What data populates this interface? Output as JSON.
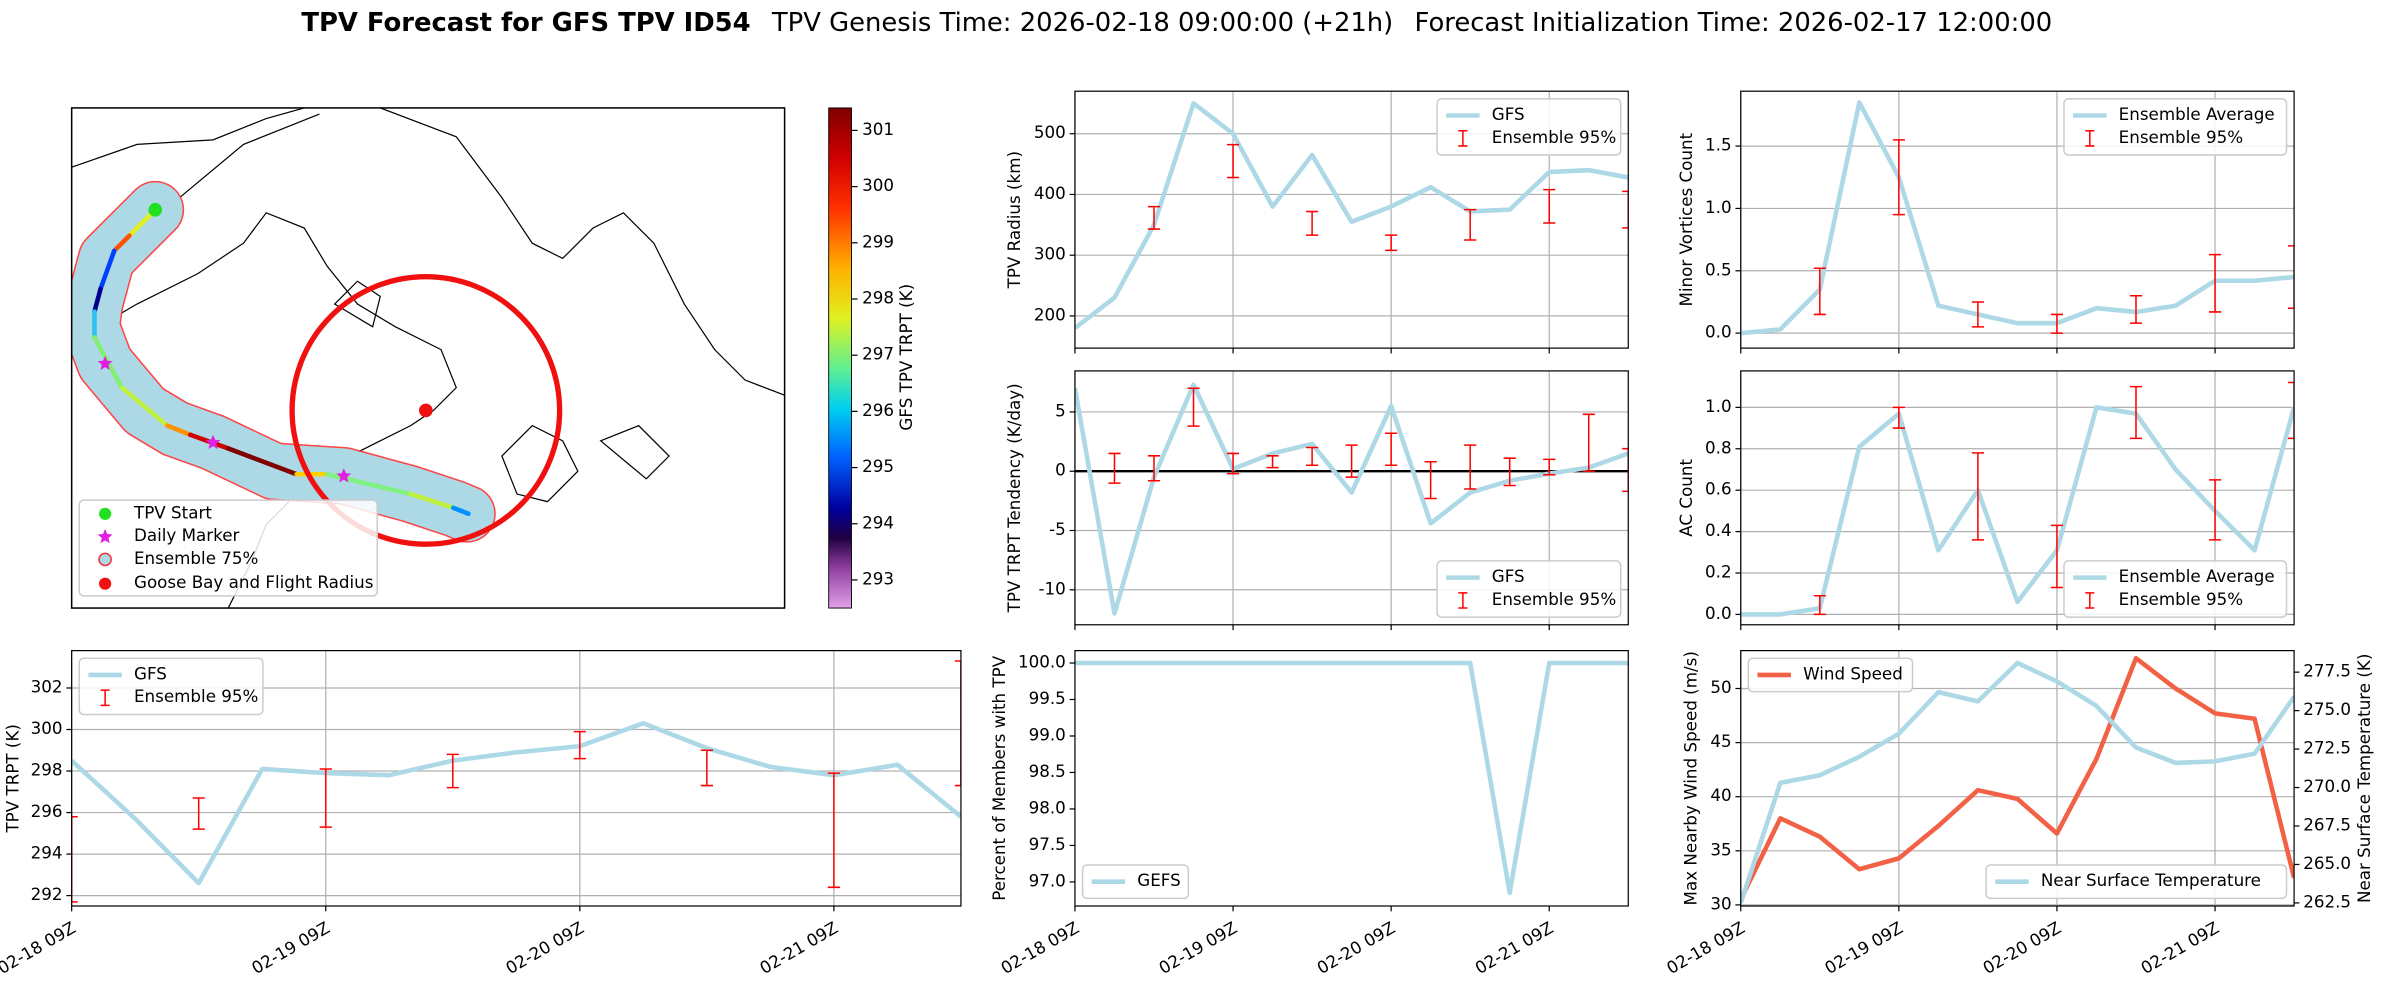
{
  "figure": {
    "title": "TPV Forecast for GFS TPV ID54",
    "genesis": "TPV Genesis Time: 2026-02-18 09:00:00 (+21h)",
    "init": "Forecast Initialization Time: 2026-02-17 12:00:00"
  },
  "chart_data": [
    {
      "type": "map",
      "legend": [
        "TPV Start",
        "Daily Marker",
        "Ensemble 75%",
        "Goose Bay and Flight Radius"
      ],
      "colorbar": {
        "label": "GFS TPV TRPT (K)",
        "lim": [
          292.5,
          301.4
        ],
        "ticks": [
          293,
          294,
          295,
          296,
          297,
          298,
          299,
          300,
          301
        ]
      }
    },
    {
      "type": "line",
      "ylabel": "TPV TRPT (K)",
      "grid": true,
      "legend": "upper left",
      "x": [
        0,
        6,
        12,
        18,
        24,
        30,
        36,
        42,
        48,
        54,
        60,
        66,
        72,
        78,
        84
      ],
      "xlim": [
        0,
        84
      ],
      "xticks": [
        {
          "value": 0,
          "label": "02-18 09Z"
        },
        {
          "value": 24,
          "label": "02-19 09Z"
        },
        {
          "value": 48,
          "label": "02-20 09Z"
        },
        {
          "value": 72,
          "label": "02-21 09Z"
        }
      ],
      "ylim": [
        291.5,
        303.8
      ],
      "yticks": [
        292,
        294,
        296,
        298,
        300,
        302
      ],
      "series": [
        {
          "name": "GFS",
          "color": "#add8e6",
          "values": [
            298.5,
            295.7,
            292.6,
            298.1,
            297.9,
            297.8,
            298.5,
            298.9,
            299.2,
            300.3,
            299.1,
            298.2,
            297.8,
            298.3,
            295.8
          ]
        },
        {
          "name": "Ensemble 95%",
          "kind": "errorbar",
          "color": "#ff0000",
          "x": [
            0,
            12,
            24,
            36,
            48,
            60,
            72,
            84
          ],
          "low": [
            291.7,
            295.2,
            295.3,
            297.2,
            298.6,
            297.3,
            292.4,
            297.3
          ],
          "high": [
            295.8,
            296.7,
            298.1,
            298.8,
            299.9,
            299.0,
            297.9,
            303.3
          ]
        }
      ]
    },
    {
      "type": "line",
      "ylabel": "TPV Radius (km)",
      "grid": true,
      "legend": "upper right",
      "x": [
        0,
        6,
        12,
        18,
        24,
        30,
        36,
        42,
        48,
        54,
        60,
        66,
        72,
        78,
        84
      ],
      "xlim": [
        0,
        84
      ],
      "xticks": [
        0,
        24,
        48,
        72
      ],
      "ylim": [
        147,
        570
      ],
      "yticks": [
        200,
        300,
        400,
        500
      ],
      "series": [
        {
          "name": "GFS",
          "color": "#add8e6",
          "values": [
            180,
            230,
            350,
            550,
            500,
            380,
            465,
            355,
            380,
            412,
            372,
            375,
            437,
            440,
            428
          ]
        },
        {
          "name": "Ensemble 95%",
          "kind": "errorbar",
          "color": "#ff0000",
          "x": [
            12,
            24,
            36,
            48,
            60,
            72,
            84
          ],
          "low": [
            343,
            428,
            333,
            308,
            325,
            353,
            345
          ],
          "high": [
            380,
            482,
            372,
            333,
            375,
            408,
            405
          ]
        }
      ]
    },
    {
      "type": "line",
      "ylabel": "TPV TRPT Tendency (K/day)",
      "grid": true,
      "legend": "lower right",
      "hline": 0,
      "x": [
        0,
        6,
        12,
        18,
        24,
        30,
        36,
        42,
        48,
        54,
        60,
        66,
        72,
        78,
        84
      ],
      "xlim": [
        0,
        84
      ],
      "xticks": [
        0,
        24,
        48,
        72
      ],
      "ylim": [
        -12.95,
        8.46
      ],
      "yticks": [
        -10,
        -5,
        0,
        5
      ],
      "series": [
        {
          "name": "GFS",
          "color": "#add8e6",
          "values": [
            7,
            -12,
            -0.5,
            7.3,
            0.2,
            1.5,
            2.3,
            -1.8,
            5.5,
            -4.4,
            -1.8,
            -0.8,
            -0.2,
            0.3,
            1.5
          ]
        },
        {
          "name": "Ensemble 95%",
          "kind": "errorbar",
          "color": "#ff0000",
          "x": [
            6,
            12,
            18,
            24,
            30,
            36,
            42,
            48,
            54,
            60,
            66,
            72,
            78,
            84
          ],
          "low": [
            -1.0,
            -0.8,
            3.8,
            -0.2,
            0.3,
            0.5,
            -0.5,
            0.5,
            -2.3,
            -1.5,
            -1.2,
            -0.3,
            0.0,
            -1.7
          ],
          "high": [
            1.5,
            1.3,
            7.0,
            1.5,
            1.3,
            2.0,
            2.2,
            3.2,
            0.8,
            2.2,
            1.1,
            1.0,
            4.8,
            1.9
          ]
        }
      ]
    },
    {
      "type": "line",
      "ylabel": "Percent of Members with TPV",
      "grid": false,
      "legend": "lower left",
      "x": [
        0,
        6,
        12,
        18,
        24,
        30,
        36,
        42,
        48,
        54,
        60,
        66,
        72,
        78,
        84
      ],
      "xlim": [
        0,
        84
      ],
      "xticks": [
        {
          "value": 0,
          "label": "02-18 09Z"
        },
        {
          "value": 24,
          "label": "02-19 09Z"
        },
        {
          "value": 48,
          "label": "02-20 09Z"
        },
        {
          "value": 72,
          "label": "02-21 09Z"
        }
      ],
      "ylim": [
        96.67,
        100.17
      ],
      "yticks": [
        {
          "value": 97,
          "label": "97.0"
        },
        97.5,
        {
          "value": 98,
          "label": "98.0"
        },
        98.5,
        {
          "value": 99,
          "label": "99.0"
        },
        99.5,
        {
          "value": 100,
          "label": "100.0"
        }
      ],
      "series": [
        {
          "name": "GEFS",
          "color": "#add8e6",
          "values": [
            100,
            100,
            100,
            100,
            100,
            100,
            100,
            100,
            100,
            100,
            100,
            96.85,
            100,
            100,
            100
          ]
        }
      ]
    },
    {
      "type": "line",
      "ylabel": "Minor Vortices Count",
      "grid": true,
      "legend": "upper right",
      "x": [
        0,
        6,
        12,
        18,
        24,
        30,
        36,
        42,
        48,
        54,
        60,
        66,
        72,
        78,
        84
      ],
      "xlim": [
        0,
        84
      ],
      "xticks": [
        0,
        24,
        48,
        72
      ],
      "ylim": [
        -0.12,
        1.94
      ],
      "yticks": [
        {
          "value": 0,
          "label": "0.0"
        },
        0.5,
        {
          "value": 1,
          "label": "1.0"
        },
        1.5
      ],
      "series": [
        {
          "name": "Ensemble Average",
          "color": "#add8e6",
          "values": [
            0,
            0.03,
            0.35,
            1.85,
            1.25,
            0.22,
            0.15,
            0.08,
            0.08,
            0.2,
            0.17,
            0.22,
            0.42,
            0.42,
            0.45
          ]
        },
        {
          "name": "Ensemble 95%",
          "kind": "errorbar",
          "color": "#ff0000",
          "x": [
            12,
            24,
            36,
            48,
            60,
            72,
            84
          ],
          "low": [
            0.15,
            0.95,
            0.05,
            0.0,
            0.08,
            0.17,
            0.2
          ],
          "high": [
            0.52,
            1.55,
            0.25,
            0.15,
            0.3,
            0.63,
            0.7
          ]
        }
      ]
    },
    {
      "type": "line",
      "ylabel": "AC Count",
      "grid": true,
      "legend": "lower right",
      "x": [
        0,
        6,
        12,
        18,
        24,
        30,
        36,
        42,
        48,
        54,
        60,
        66,
        72,
        78,
        84
      ],
      "xlim": [
        0,
        84
      ],
      "xticks": [
        0,
        24,
        48,
        72
      ],
      "ylim": [
        -0.05,
        1.176
      ],
      "yticks": [
        {
          "value": 0,
          "label": "0.0"
        },
        0.2,
        0.4,
        0.6,
        0.8,
        {
          "value": 1,
          "label": "1.0"
        }
      ],
      "series": [
        {
          "name": "Ensemble Average",
          "color": "#add8e6",
          "values": [
            0,
            0,
            0.03,
            0.81,
            0.97,
            0.31,
            0.6,
            0.06,
            0.31,
            1.0,
            0.97,
            0.7,
            0.5,
            0.31,
            1.0
          ]
        },
        {
          "name": "Ensemble 95%",
          "kind": "errorbar",
          "color": "#ff0000",
          "x": [
            12,
            24,
            36,
            48,
            60,
            72,
            84
          ],
          "low": [
            0,
            0.9,
            0.36,
            0.13,
            0.85,
            0.36,
            0.85
          ],
          "high": [
            0.09,
            1.0,
            0.78,
            0.43,
            1.1,
            0.65,
            1.12
          ]
        }
      ]
    },
    {
      "type": "line",
      "ylabel": "Max Nearby Wind Speed (m/s)",
      "ylabel_color": "#f26145",
      "y2label": "Near Surface Temperature (K)",
      "y2label_color": "#4169e1",
      "grid": true,
      "legend": "upper left",
      "x": [
        0,
        6,
        12,
        18,
        24,
        30,
        36,
        42,
        48,
        54,
        60,
        66,
        72,
        78,
        84
      ],
      "xlim": [
        0,
        84
      ],
      "xticks": [
        {
          "value": 0,
          "label": "02-18 09Z"
        },
        {
          "value": 24,
          "label": "02-19 09Z"
        },
        {
          "value": 48,
          "label": "02-20 09Z"
        },
        {
          "value": 72,
          "label": "02-21 09Z"
        }
      ],
      "ylim": [
        29.9,
        53.5
      ],
      "yticks": [
        30,
        35,
        40,
        45,
        50
      ],
      "y2lim": [
        262.3,
        278.9
      ],
      "y2ticks": [
        262.5,
        {
          "value": 265,
          "label": "265.0"
        },
        267.5,
        {
          "value": 270,
          "label": "270.0"
        },
        272.5,
        {
          "value": 275,
          "label": "275.0"
        },
        277.5
      ],
      "series": [
        {
          "name": "Wind Speed",
          "color": "#f26145",
          "values": [
            30.5,
            38,
            36.3,
            33.3,
            34.3,
            37.3,
            40.6,
            39.8,
            36.6,
            43.5,
            52.8,
            50,
            47.7,
            47.2,
            32.5
          ]
        },
        {
          "name": "Near Surface Temperature",
          "color": "#add8e6",
          "axis": "y2",
          "legend": "lower right",
          "values": [
            262.5,
            270.3,
            270.8,
            272,
            273.5,
            276.2,
            275.6,
            278.1,
            276.9,
            275.3,
            272.6,
            271.6,
            271.7,
            272.2,
            275.9
          ]
        }
      ]
    }
  ]
}
